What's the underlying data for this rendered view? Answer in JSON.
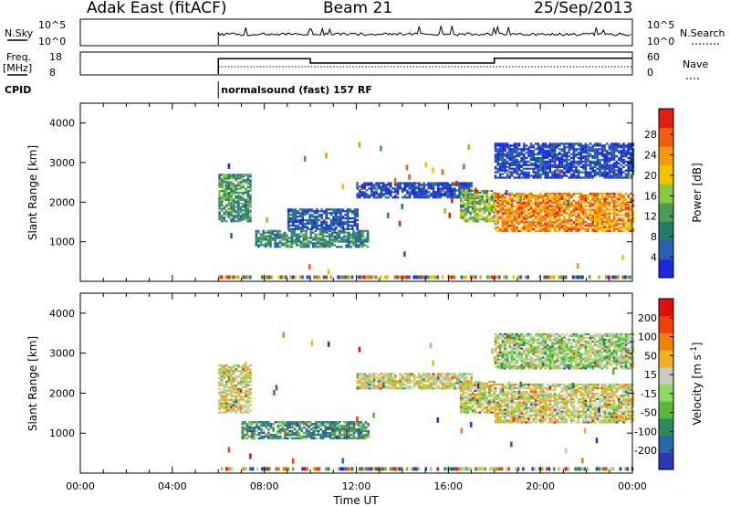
{
  "header": {
    "station": "Adak East (fitACF)",
    "beam": "Beam 21",
    "date": "25/Sep/2013"
  },
  "aux_panels": {
    "nsky_label": "N.Sky",
    "nsky_ticks": [
      "10^5",
      "10^0"
    ],
    "nsearch_label": "N.Search",
    "nsearch_ticks": [
      "10^5",
      "10^0"
    ],
    "freq_label_1": "Freq.",
    "freq_label_2": "[MHz]",
    "freq_ticks": [
      "18",
      "8"
    ],
    "nave_label": "Nave",
    "nave_ticks": [
      "60",
      "0"
    ],
    "cpid_label": "CPID",
    "cpid_text": "normalsound (fast) 157 RF",
    "data_start_hour": 6,
    "freq_steps": [
      {
        "from": 6,
        "to": 10,
        "level": 0.7
      },
      {
        "from": 10,
        "to": 18,
        "level": 0.5
      },
      {
        "from": 18,
        "to": 24,
        "level": 0.72
      }
    ]
  },
  "chart_data": [
    {
      "type": "heatmap",
      "title": "Power",
      "xlabel": "",
      "ylabel": "Slant Range [km]",
      "xlim": [
        0,
        24
      ],
      "ylim": [
        0,
        4500
      ],
      "y_ticks": [
        "1000",
        "2000",
        "3000",
        "4000"
      ],
      "colorbar": {
        "label": "Power [dB]",
        "ticks": [
          "4",
          "8",
          "12",
          "16",
          "20",
          "24",
          "28"
        ],
        "colors": [
          "#1d2ad8",
          "#2b5fb0",
          "#1f7d6a",
          "#4f9a58",
          "#8dc73c",
          "#f2c200",
          "#f19a10",
          "#ef5f10",
          "#e11e10"
        ]
      },
      "regions": [
        {
          "x": [
            6.0,
            7.4
          ],
          "y": [
            1500,
            2700
          ],
          "level": 0.35
        },
        {
          "x": [
            7.6,
            12.5
          ],
          "y": [
            850,
            1300
          ],
          "level": 0.3
        },
        {
          "x": [
            9.0,
            12.0
          ],
          "y": [
            1300,
            1800
          ],
          "level": 0.15
        },
        {
          "x": [
            12.0,
            17.0
          ],
          "y": [
            2100,
            2500
          ],
          "level": 0.1
        },
        {
          "x": [
            16.5,
            18.0
          ],
          "y": [
            1500,
            2300
          ],
          "level": 0.45
        },
        {
          "x": [
            18.0,
            24.0
          ],
          "y": [
            1250,
            2200
          ],
          "level": 0.75
        },
        {
          "x": [
            18.0,
            24.0
          ],
          "y": [
            2600,
            3500
          ],
          "level": 0.1
        }
      ]
    },
    {
      "type": "heatmap",
      "title": "Velocity",
      "xlabel": "Time UT",
      "ylabel": "Slant Range [km]",
      "xlim": [
        0,
        24
      ],
      "ylim": [
        0,
        4500
      ],
      "x_ticks": [
        "00:00",
        "04:00",
        "08:00",
        "12:00",
        "16:00",
        "20:00",
        "00:00"
      ],
      "y_ticks": [
        "1000",
        "2000",
        "3000",
        "4000"
      ],
      "colorbar": {
        "label": "Velocity [m s^-1]",
        "ticks": [
          "200",
          "100",
          "50",
          "15",
          "-15",
          "-50",
          "-100",
          "-200"
        ],
        "colors": [
          "#2b36b8",
          "#2a66a8",
          "#2d8a5a",
          "#55b83a",
          "#90d860",
          "#c9c9c0",
          "#f0b020",
          "#f08010",
          "#f04010",
          "#e01010"
        ]
      },
      "regions": [
        {
          "x": [
            6.0,
            7.4
          ],
          "y": [
            1500,
            2700
          ],
          "level": 0.55
        },
        {
          "x": [
            7.0,
            12.5
          ],
          "y": [
            850,
            1300
          ],
          "level": 0.25
        },
        {
          "x": [
            12.0,
            17.0
          ],
          "y": [
            2100,
            2500
          ],
          "level": 0.55
        },
        {
          "x": [
            16.5,
            18.0
          ],
          "y": [
            1500,
            2300
          ],
          "level": 0.55
        },
        {
          "x": [
            18.0,
            24.0
          ],
          "y": [
            1250,
            2200
          ],
          "level": 0.55
        },
        {
          "x": [
            18.0,
            24.0
          ],
          "y": [
            2600,
            3500
          ],
          "level": 0.45
        }
      ]
    }
  ]
}
